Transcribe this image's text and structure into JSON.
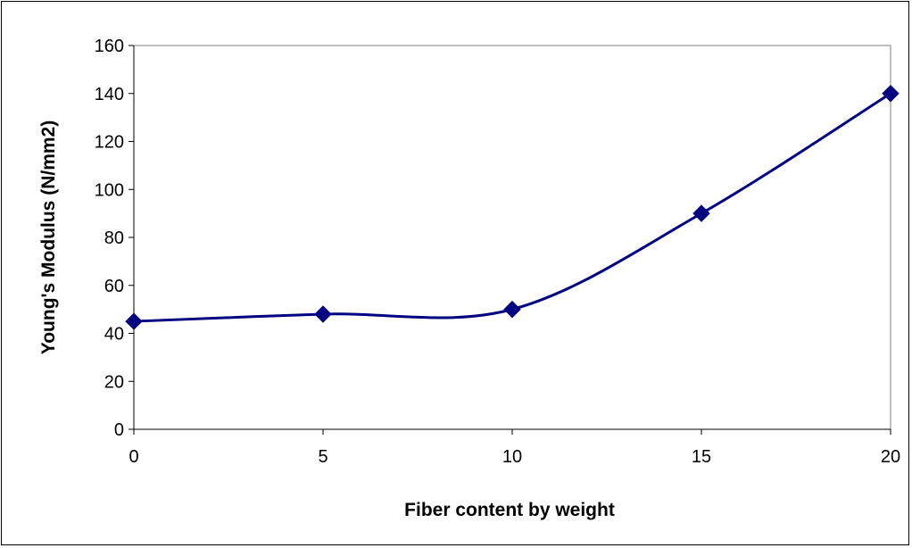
{
  "chart_data": {
    "type": "line",
    "title": "",
    "xlabel": "Fiber content by weight",
    "ylabel": "Young's Modulus (N/mm2)",
    "xlim": [
      0,
      20
    ],
    "ylim": [
      0,
      160
    ],
    "xticks": [
      0,
      5,
      10,
      15,
      20
    ],
    "yticks": [
      0,
      20,
      40,
      60,
      80,
      100,
      120,
      140,
      160
    ],
    "grid": false,
    "legend": "none",
    "series": [
      {
        "x": [
          0,
          5,
          10,
          15,
          20
        ],
        "values": [
          45,
          48,
          50,
          90,
          140
        ],
        "color": "#000080",
        "marker": "diamond",
        "smooth": true
      }
    ]
  }
}
